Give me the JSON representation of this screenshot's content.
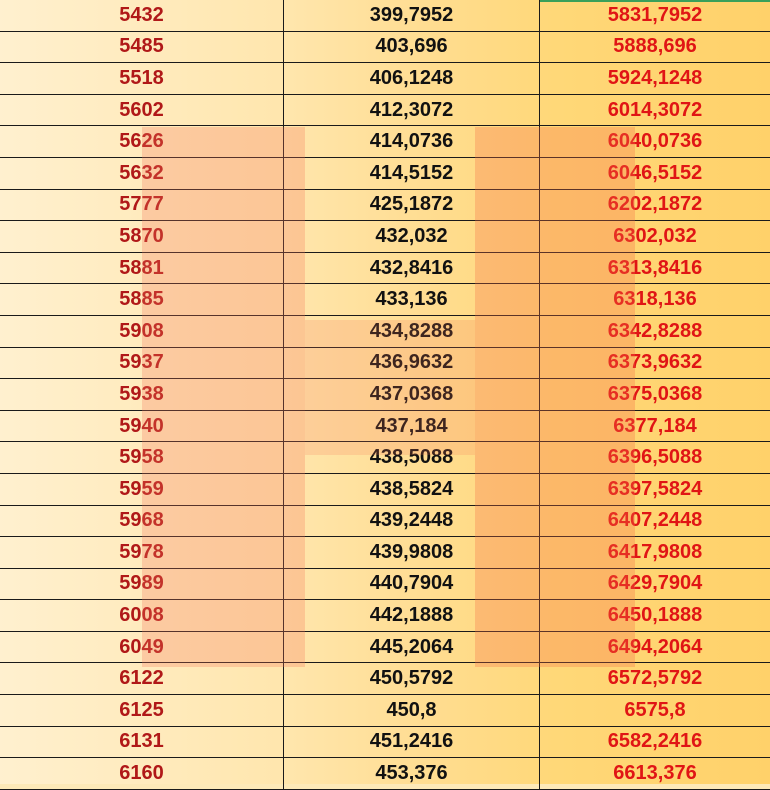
{
  "rows": [
    [
      "5432",
      "399,7952",
      "5831,7952"
    ],
    [
      "5485",
      "403,696",
      "5888,696"
    ],
    [
      "5518",
      "406,1248",
      "5924,1248"
    ],
    [
      "5602",
      "412,3072",
      "6014,3072"
    ],
    [
      "5626",
      "414,0736",
      "6040,0736"
    ],
    [
      "5632",
      "414,5152",
      "6046,5152"
    ],
    [
      "5777",
      "425,1872",
      "6202,1872"
    ],
    [
      "5870",
      "432,032",
      "6302,032"
    ],
    [
      "5881",
      "432,8416",
      "6313,8416"
    ],
    [
      "5885",
      "433,136",
      "6318,136"
    ],
    [
      "5908",
      "434,8288",
      "6342,8288"
    ],
    [
      "5937",
      "436,9632",
      "6373,9632"
    ],
    [
      "5938",
      "437,0368",
      "6375,0368"
    ],
    [
      "5940",
      "437,184",
      "6377,184"
    ],
    [
      "5958",
      "438,5088",
      "6396,5088"
    ],
    [
      "5959",
      "438,5824",
      "6397,5824"
    ],
    [
      "5968",
      "439,2448",
      "6407,2448"
    ],
    [
      "5978",
      "439,9808",
      "6417,9808"
    ],
    [
      "5989",
      "440,7904",
      "6429,7904"
    ],
    [
      "6008",
      "442,1888",
      "6450,1888"
    ],
    [
      "6049",
      "445,2064",
      "6494,2064"
    ],
    [
      "6122",
      "450,5792",
      "6572,5792"
    ],
    [
      "6125",
      "450,8",
      "6575,8"
    ],
    [
      "6131",
      "451,2416",
      "6582,2416"
    ],
    [
      "6160",
      "453,376",
      "6613,376"
    ]
  ],
  "colors": {
    "col1_text": "#b01818",
    "col2_text": "#111111",
    "col3_text": "#e01515",
    "watermark": "#f5785a"
  }
}
